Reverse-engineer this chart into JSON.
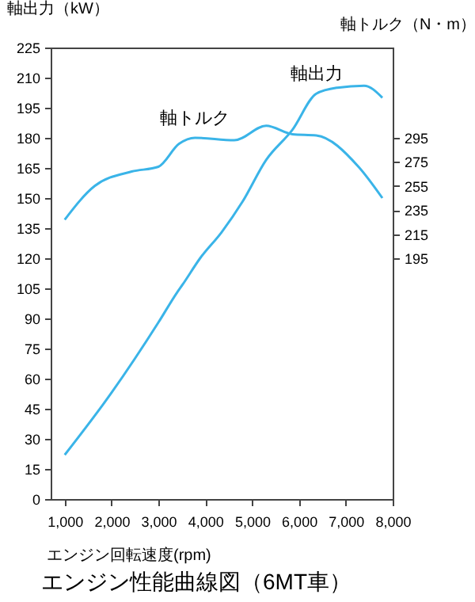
{
  "chart_data": {
    "type": "line",
    "title": "エンジン性能曲線図（6MT車）",
    "xlabel": "エンジン回転速度(rpm)",
    "ylabel": "軸出力（kW）",
    "y2label": "軸トルク（N・m）",
    "xlim": [
      700,
      8000
    ],
    "xticks": [
      {
        "value": 1000,
        "label": "1,000"
      },
      {
        "value": 2000,
        "label": "2,000"
      },
      {
        "value": 3000,
        "label": "3,000"
      },
      {
        "value": 4000,
        "label": "4,000"
      },
      {
        "value": 5000,
        "label": "5,000"
      },
      {
        "value": 6000,
        "label": "6,000"
      },
      {
        "value": 7000,
        "label": "7,000"
      },
      {
        "value": 8000,
        "label": "8,000"
      }
    ],
    "ylim": [
      0,
      225
    ],
    "yticks": [
      0,
      15,
      30,
      45,
      60,
      75,
      90,
      105,
      120,
      135,
      150,
      165,
      180,
      195,
      210,
      225
    ],
    "y2lim": [
      -5,
      370
    ],
    "y2ticks": [
      195,
      215,
      235,
      255,
      275,
      295
    ],
    "grid": false,
    "marker": "none",
    "series": [
      {
        "color": "#3ab4e8",
        "x": [
          1000,
          2000,
          3000,
          3400,
          3520,
          3890,
          4350,
          4790,
          5300,
          5860,
          6370,
          6820,
          7390,
          7780
        ],
        "values": [
          22,
          53,
          88,
          103,
          107,
          120,
          133,
          148,
          169,
          184,
          202,
          205,
          206,
          200
        ]
      },
      {
        "color": "#3ab4e8",
        "axis": "y2",
        "x": [
          1000,
          1640,
          2430,
          3000,
          3440,
          3780,
          4620,
          5300,
          5860,
          6370,
          7270,
          7780
        ],
        "values": [
          227,
          255,
          267,
          271,
          290,
          295,
          293,
          305,
          298,
          297,
          271,
          245
        ]
      }
    ],
    "annotations": [
      {
        "text": "軸出力",
        "x": 6370,
        "y": 202
      },
      {
        "text": "軸トルク",
        "x": 3780,
        "y": 180
      }
    ]
  }
}
